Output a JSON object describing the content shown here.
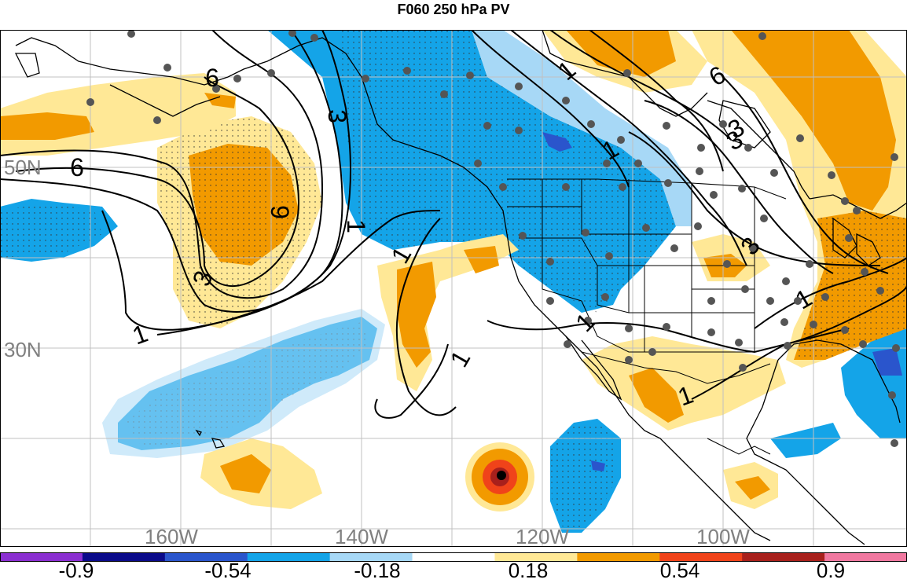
{
  "title": "F060 250 hPa PV",
  "map": {
    "longitude_labels": [
      "160W",
      "140W",
      "120W",
      "100W"
    ],
    "latitude_labels": [
      "50N",
      "30N"
    ],
    "contour_labels": [
      "6",
      "3",
      "1",
      "9",
      "6",
      "3",
      "1",
      "1",
      "1",
      "1",
      "6",
      "3",
      "1",
      "3",
      "1",
      "1",
      "1",
      "3"
    ],
    "colors": {
      "land_line": "#000000",
      "grid": "#c0c0c0",
      "label_gray": "#808080",
      "station_dot": "#555555",
      "hurricane_center": "#000000"
    }
  },
  "colorbar": {
    "labels": [
      "-0.9",
      "-0.54",
      "-0.18",
      "0.18",
      "0.54",
      "0.9"
    ],
    "colors": [
      "#8b2fd1",
      "#0a0a8a",
      "#2a55cc",
      "#14a4e8",
      "#a7d8f6",
      "#ffffff",
      "#ffe896",
      "#f29a00",
      "#f0431a",
      "#a8201c",
      "#f078a0"
    ]
  }
}
